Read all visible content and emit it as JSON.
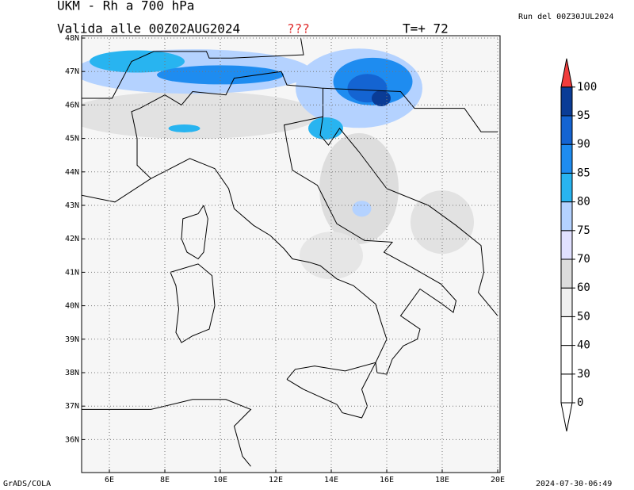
{
  "header": {
    "title": "UKM - Rh a 700 hPa",
    "valid": "Valida alle 00Z02AUG2024",
    "flag": "???",
    "step": "T=+ 72",
    "run": "Run del 00Z30JUL2024"
  },
  "map": {
    "lat_labels": [
      "48N",
      "47N",
      "46N",
      "45N",
      "44N",
      "43N",
      "42N",
      "41N",
      "40N",
      "39N",
      "38N",
      "37N",
      "36N"
    ],
    "lon_labels": [
      "6E",
      "8E",
      "10E",
      "12E",
      "14E",
      "16E",
      "18E",
      "20E"
    ]
  },
  "colorbar": {
    "levels": [
      0,
      30,
      40,
      50,
      60,
      70,
      75,
      80,
      85,
      90,
      95,
      100
    ],
    "colors": [
      "#ffffff",
      "#ffffff",
      "#ffffff",
      "#ffffff",
      "#f0f0f0",
      "#dcdcdc",
      "#e1e1ff",
      "#b4d2ff",
      "#28b4f0",
      "#1e8cf0",
      "#1464d2",
      "#0a3c96",
      "#f03c3c"
    ]
  },
  "footer": {
    "left": "GrADS/COLA",
    "right": "2024-07-30-06:49"
  }
}
